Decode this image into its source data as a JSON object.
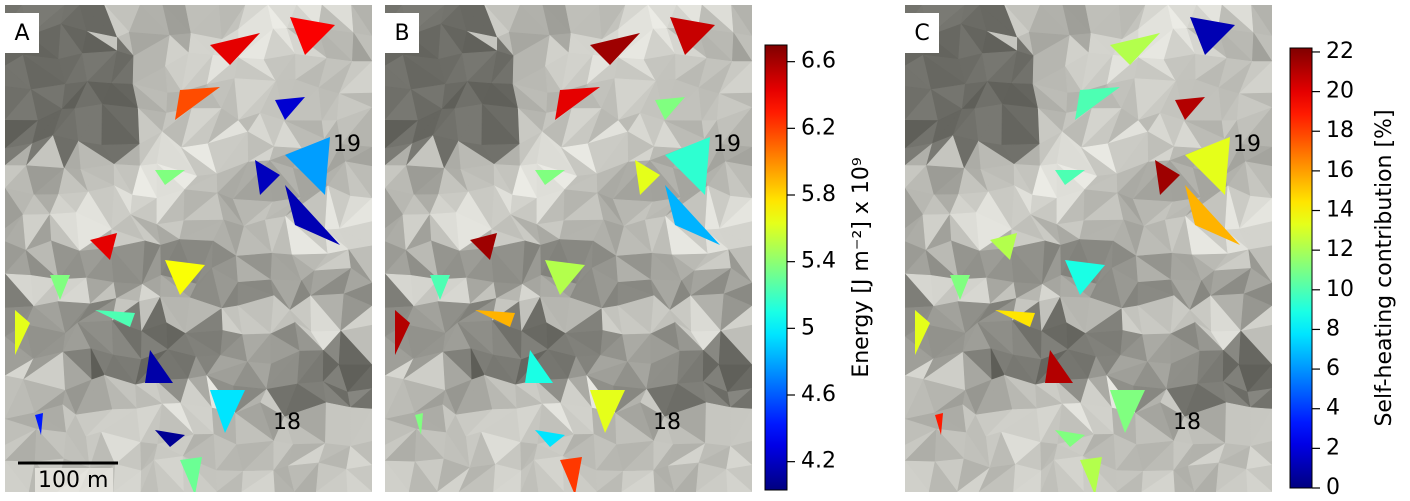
{
  "panels": [
    {
      "label": "A",
      "markers": [
        "19",
        "18"
      ],
      "scale_bar": "100 m"
    },
    {
      "label": "B",
      "markers": [
        "19",
        "18"
      ]
    },
    {
      "label": "C",
      "markers": [
        "19",
        "18"
      ]
    }
  ],
  "chart_data": [
    {
      "type": "colorbar",
      "label": "Energy [J m⁻²] x 10⁹",
      "colormap": "jet",
      "ylim": [
        4.03,
        6.7
      ],
      "yticks": [
        4.2,
        4.6,
        5,
        5.4,
        5.8,
        6.2,
        6.6
      ]
    },
    {
      "type": "colorbar",
      "label": "Self-heating contribution [%]",
      "colormap": "jet",
      "ylim": [
        0,
        22.2
      ],
      "yticks": [
        0,
        2,
        4,
        6,
        8,
        10,
        12,
        14,
        16,
        18,
        20,
        22
      ]
    }
  ]
}
